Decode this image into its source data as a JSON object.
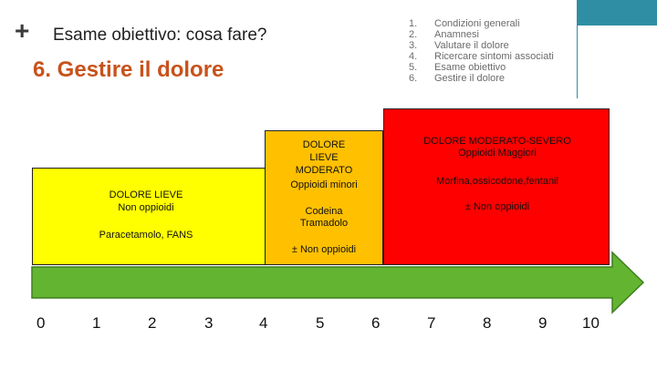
{
  "header": {
    "plus_icon": "+",
    "title": "Esame obiettivo: cosa fare?"
  },
  "main_title": "6. Gestire il dolore",
  "agenda": [
    {
      "num": "1.",
      "text": "Condizioni generali"
    },
    {
      "num": "2.",
      "text": "Anamnesi"
    },
    {
      "num": "3.",
      "text": "Valutare il dolore"
    },
    {
      "num": "4.",
      "text": "Ricercare sintomi associati"
    },
    {
      "num": "5.",
      "text": "Esame obiettivo"
    },
    {
      "num": "6.",
      "text": "Gestire il dolore"
    }
  ],
  "levels": {
    "lieve": {
      "title": "DOLORE LIEVE",
      "subtitle": "Non oppioidi",
      "drugs": "Paracetamolo, FANS"
    },
    "moderato": {
      "title_line1": "DOLORE",
      "title_line2": "LIEVE",
      "title_line3": "MODERATO",
      "subtitle": "Oppioidi minori",
      "drugs_line1": "Codeina",
      "drugs_line2": "Tramadolo",
      "extra": "± Non oppioidi"
    },
    "severo": {
      "title": "DOLORE MODERATO-SEVERO",
      "subtitle": "Oppioidi Maggiori",
      "drugs": "Morfina,ossicodone,fentanil",
      "extra": "± Non oppioidi"
    }
  },
  "scale": [
    "0",
    "1",
    "2",
    "3",
    "4",
    "5",
    "6",
    "7",
    "8",
    "9",
    "10"
  ],
  "colors": {
    "accent_title": "#c8521b",
    "teal": "#2f8ea3",
    "arrow_green": "#63b531",
    "lieve": "#ffff00",
    "moderato": "#ffc000",
    "severo": "#ff0000"
  }
}
